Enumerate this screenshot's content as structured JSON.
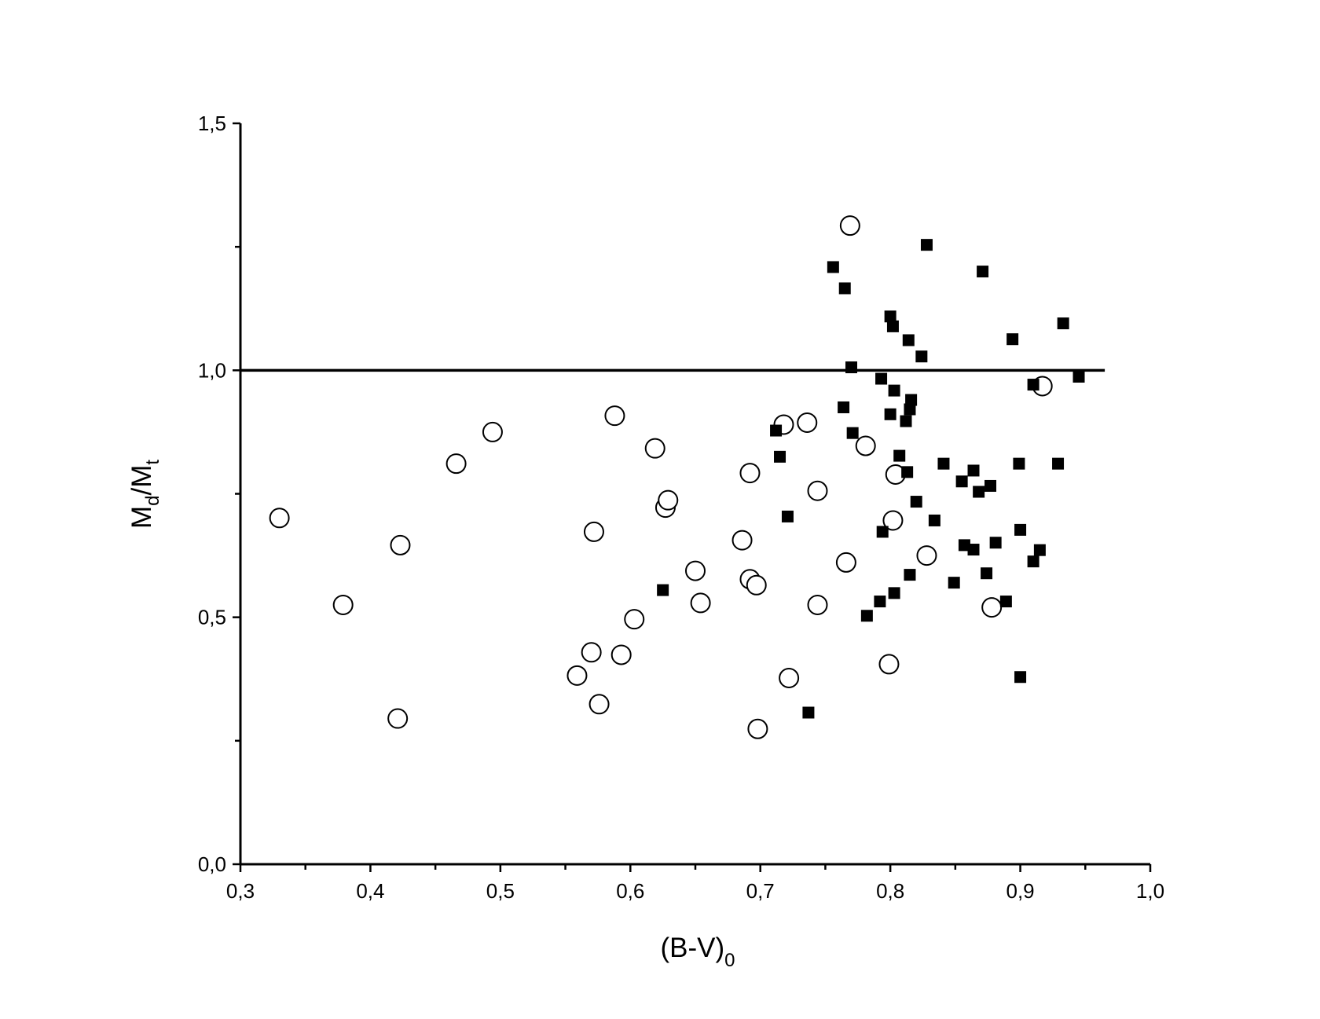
{
  "chart_data": {
    "type": "scatter",
    "xlabel": {
      "parts": [
        "(B-V)",
        "0"
      ]
    },
    "ylabel": {
      "parts": [
        "M",
        "d",
        "/M",
        "t"
      ]
    },
    "xlim": [
      0.3,
      1.0
    ],
    "ylim": [
      0.0,
      1.5
    ],
    "xticks": [
      {
        "value": 0.3,
        "label": "0,3"
      },
      {
        "value": 0.4,
        "label": "0,4"
      },
      {
        "value": 0.5,
        "label": "0,5"
      },
      {
        "value": 0.6,
        "label": "0,6"
      },
      {
        "value": 0.7,
        "label": "0,7"
      },
      {
        "value": 0.8,
        "label": "0,8"
      },
      {
        "value": 0.9,
        "label": "0,9"
      },
      {
        "value": 1.0,
        "label": "1,0"
      }
    ],
    "xminorticks": [
      0.35,
      0.45,
      0.55,
      0.65,
      0.75,
      0.85,
      0.95
    ],
    "yticks": [
      {
        "value": 0.0,
        "label": "0,0"
      },
      {
        "value": 0.5,
        "label": "0,5"
      },
      {
        "value": 1.0,
        "label": "1,0"
      },
      {
        "value": 1.5,
        "label": "1,5"
      }
    ],
    "yminorticks": [
      0.25,
      0.75,
      1.25
    ],
    "reference_line": {
      "y": 1.0,
      "x": [
        0.3,
        0.965
      ]
    },
    "series": [
      {
        "marker": "circle-open",
        "color": "#000000",
        "x": [
          0.33,
          0.379,
          0.423,
          0.421,
          0.466,
          0.494,
          0.588,
          0.619,
          0.627,
          0.629,
          0.572,
          0.57,
          0.593,
          0.559,
          0.576,
          0.603,
          0.65,
          0.654,
          0.692,
          0.686,
          0.692,
          0.697,
          0.698,
          0.718,
          0.736,
          0.744,
          0.744,
          0.722,
          0.769,
          0.781,
          0.804,
          0.802,
          0.766,
          0.799,
          0.828,
          0.878,
          0.917
        ],
        "y": [
          0.701,
          0.525,
          0.646,
          0.295,
          0.811,
          0.875,
          0.908,
          0.842,
          0.722,
          0.737,
          0.673,
          0.429,
          0.424,
          0.382,
          0.324,
          0.496,
          0.594,
          0.529,
          0.792,
          0.656,
          0.577,
          0.565,
          0.274,
          0.89,
          0.894,
          0.756,
          0.525,
          0.377,
          1.293,
          0.847,
          0.789,
          0.696,
          0.611,
          0.405,
          0.625,
          0.52,
          0.968
        ]
      },
      {
        "marker": "square",
        "color": "#000000",
        "x": [
          0.756,
          0.765,
          0.828,
          0.871,
          0.8,
          0.802,
          0.814,
          0.824,
          0.894,
          0.933,
          0.77,
          0.793,
          0.803,
          0.816,
          0.815,
          0.812,
          0.8,
          0.764,
          0.945,
          0.91,
          0.712,
          0.771,
          0.715,
          0.807,
          0.841,
          0.813,
          0.864,
          0.855,
          0.877,
          0.868,
          0.899,
          0.929,
          0.82,
          0.721,
          0.834,
          0.794,
          0.9,
          0.857,
          0.864,
          0.881,
          0.915,
          0.91,
          0.815,
          0.874,
          0.849,
          0.625,
          0.803,
          0.792,
          0.889,
          0.782,
          0.9,
          0.737
        ],
        "y": [
          1.209,
          1.166,
          1.254,
          1.2,
          1.109,
          1.089,
          1.061,
          1.028,
          1.063,
          1.095,
          1.006,
          0.983,
          0.959,
          0.94,
          0.921,
          0.897,
          0.911,
          0.925,
          0.987,
          0.971,
          0.878,
          0.873,
          0.825,
          0.827,
          0.811,
          0.794,
          0.797,
          0.775,
          0.766,
          0.754,
          0.811,
          0.811,
          0.734,
          0.704,
          0.696,
          0.673,
          0.677,
          0.646,
          0.637,
          0.651,
          0.636,
          0.613,
          0.586,
          0.589,
          0.57,
          0.555,
          0.549,
          0.532,
          0.532,
          0.503,
          0.379,
          0.307
        ]
      }
    ]
  }
}
